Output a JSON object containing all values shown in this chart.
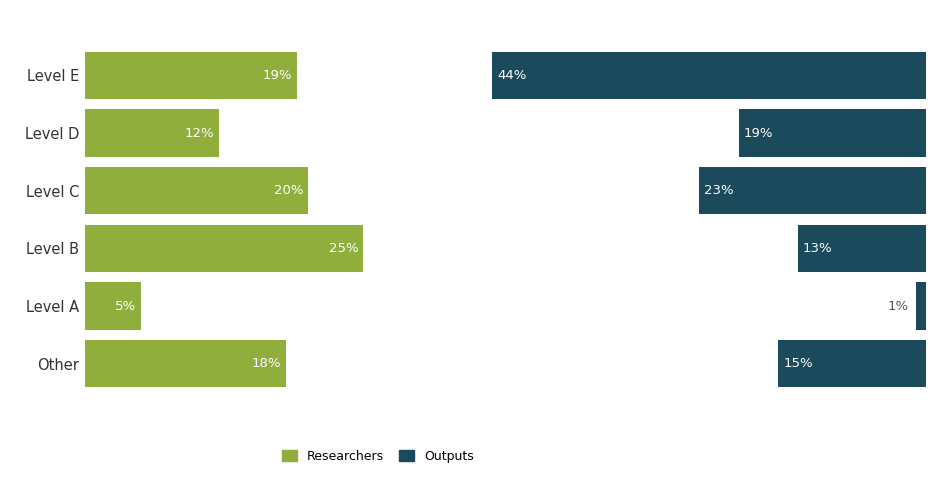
{
  "categories": [
    "Level E",
    "Level D",
    "Level C",
    "Level B",
    "Level A",
    "Other"
  ],
  "researchers": [
    19,
    12,
    20,
    25,
    5,
    18
  ],
  "outputs": [
    44,
    19,
    23,
    13,
    1,
    15
  ],
  "researcher_color": "#8fae3c",
  "output_color": "#1a4a5c",
  "bar_height": 0.82,
  "researcher_max": 28,
  "output_max": 46,
  "legend_labels": [
    "Researchers",
    "Outputs"
  ],
  "fig_width": 9.45,
  "fig_height": 4.99,
  "dpi": 100,
  "background_color": "#ffffff",
  "text_color": "#ffffff",
  "label_fontsize": 9.5,
  "legend_fontsize": 9,
  "ytick_fontsize": 10.5
}
